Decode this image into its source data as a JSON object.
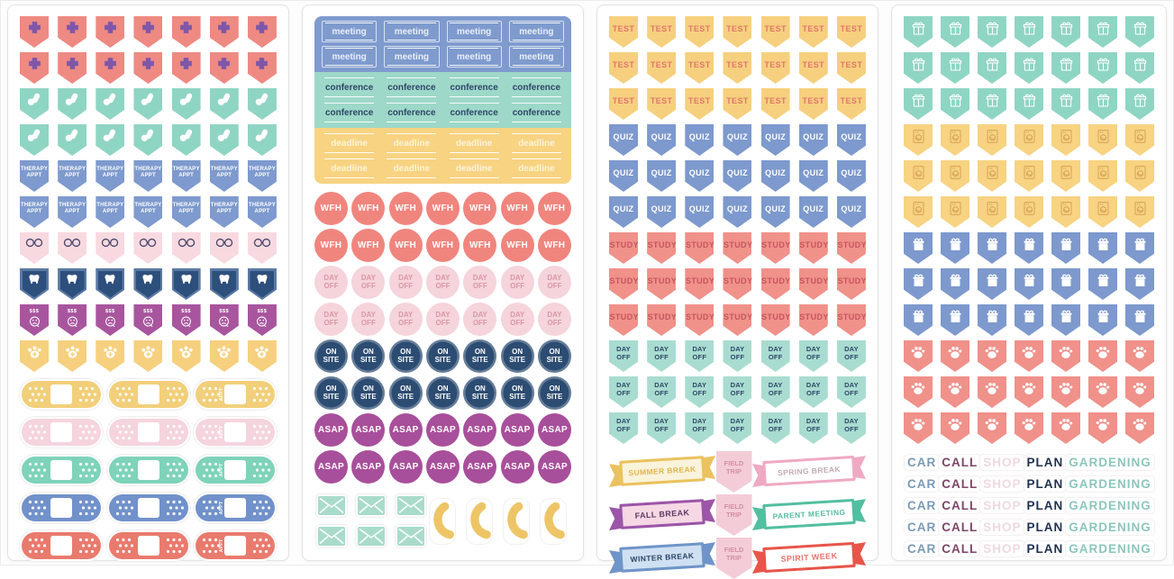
{
  "photo": {
    "description_colors": {
      "page_bg": "#fdfdfd",
      "sheet_bg": "#ffffff",
      "sheet_border": "#e3e3e3"
    }
  },
  "sheets": [
    {
      "name": "medical-sticker-sheet",
      "sections": [
        {
          "type": "pennants",
          "rows": 2,
          "cols": 7,
          "color": "#ee8a82",
          "icon": "medical-cross-icon",
          "iconColor": "#7e57a8"
        },
        {
          "type": "pennants",
          "rows": 2,
          "cols": 7,
          "color": "#8fd5c3",
          "icon": "pills-icon",
          "iconColor": "#ffffff"
        },
        {
          "type": "pennants",
          "rows": 2,
          "cols": 7,
          "color": "#7e9ace",
          "label": "THERAPY APPT",
          "textColor": "#ffffff"
        },
        {
          "type": "pennants",
          "rows": 1,
          "cols": 7,
          "color": "#f8d9e0",
          "icon": "glasses-icon",
          "iconColor": "#44436a"
        },
        {
          "type": "pennants",
          "rows": 1,
          "cols": 7,
          "color": "#2d4f7c",
          "icon": "tooth-icon",
          "iconColor": "#ffffff",
          "innerBorder": "#5b7aa5"
        },
        {
          "type": "pennants",
          "rows": 1,
          "cols": 7,
          "color": "#a8559e",
          "icon": "sad-money-face-icon",
          "iconColor": "#ffffff",
          "labelTop": "$$$"
        },
        {
          "type": "pennants",
          "rows": 1,
          "cols": 7,
          "color": "#f6d07e",
          "icon": "vet-paw-icon",
          "iconColor": "#ffffff"
        },
        {
          "type": "bandaids",
          "cols": 3,
          "colors": [
            "#f2cf7a",
            "#f5d4de",
            "#7ed3b9",
            "#7191cb",
            "#e97a6e"
          ],
          "sideLabel": "APPT"
        }
      ]
    },
    {
      "name": "work-sticker-sheet",
      "sections": [
        {
          "type": "labelBlocks",
          "rows": 2,
          "cols": 4,
          "blocks": [
            {
              "color": "#7f9bce",
              "label": "meeting",
              "textColor": "#e8eefa",
              "bordered": true
            },
            {
              "color": "#9ed8c8",
              "label": "conference",
              "textColor": "#2d4668",
              "bordered": false
            },
            {
              "color": "#f7d382",
              "label": "deadline",
              "textColor": "#fdf3d8",
              "bordered": false
            }
          ]
        },
        {
          "type": "circles",
          "rows": 2,
          "cols": 7,
          "color": "#f0857e",
          "label": "WFH",
          "textColor": "#ffffff",
          "size": "lg"
        },
        {
          "type": "circles",
          "rows": 2,
          "cols": 7,
          "color": "#f6d4db",
          "label": "DAY OFF",
          "textColor": "#db96a5",
          "size": "md"
        },
        {
          "type": "circles",
          "rows": 2,
          "cols": 7,
          "color": "#2c4c72",
          "label": "ON SITE",
          "textColor": "#ffffff",
          "size": "md",
          "ring": true
        },
        {
          "type": "circles",
          "rows": 2,
          "cols": 7,
          "color": "#a84f9b",
          "label": "ASAP",
          "textColor": "#ffffff",
          "size": "lg"
        },
        {
          "type": "mailPhone",
          "envelope": {
            "color": "#a9dbcb",
            "rows": 2,
            "cols": 3
          },
          "phone": {
            "color": "#eec566",
            "count": 4
          }
        }
      ]
    },
    {
      "name": "school-sticker-sheet",
      "sections": [
        {
          "type": "pennants",
          "rows": 3,
          "cols": 7,
          "color": "#f6d07e",
          "label": "TEST",
          "textColor": "#e2766b"
        },
        {
          "type": "pennants",
          "rows": 3,
          "cols": 7,
          "color": "#7d99cd",
          "label": "QUIZ",
          "textColor": "#ffffff"
        },
        {
          "type": "pennants",
          "rows": 3,
          "cols": 7,
          "color": "#f0918a",
          "label": "STUDY",
          "textColor": "#c6565e"
        },
        {
          "type": "pennants",
          "rows": 3,
          "cols": 7,
          "color": "#a9dcd0",
          "label": "DAY OFF",
          "textColor": "#2d4668"
        },
        {
          "type": "banners",
          "fieldTrip": {
            "text": "FIELD TRIP",
            "color": "#f3ccd8",
            "textColor": "#d4909f"
          },
          "rows": [
            {
              "left": {
                "outer": "#eac25e",
                "inner": "#faf3dc",
                "text": "SUMMER BREAK",
                "textColor": "#e0b54c"
              },
              "right": {
                "outer": "#efa9c3",
                "inner": "#ffffff",
                "text": "SPRING BREAK",
                "textColor": "#c2aab2"
              }
            },
            {
              "left": {
                "outer": "#9c55a8",
                "inner": "#f5d8e4",
                "text": "FALL BREAK",
                "textColor": "#5e3a66"
              },
              "right": {
                "outer": "#52bfa0",
                "inner": "#ffffff",
                "text": "PARENT MEETING",
                "textColor": "#57bda1"
              }
            },
            {
              "left": {
                "outer": "#6f94c9",
                "inner": "#cfe0f2",
                "text": "WINTER BREAK",
                "textColor": "#2d4668"
              },
              "right": {
                "outer": "#e8554a",
                "inner": "#ffffff",
                "text": "SPIRIT WEEK",
                "textColor": "#e8756b"
              }
            }
          ]
        }
      ]
    },
    {
      "name": "home-sticker-sheet",
      "sections": [
        {
          "type": "pennants",
          "rows": 3,
          "cols": 7,
          "color": "#8fd5c4",
          "icon": "gift-outline-icon",
          "iconColor": "#ffffff"
        },
        {
          "type": "pennants",
          "rows": 3,
          "cols": 7,
          "color": "#f7d382",
          "icon": "laundry-machine-icon",
          "iconColor": "#d9a558"
        },
        {
          "type": "pennants",
          "rows": 3,
          "cols": 7,
          "color": "#7d99cd",
          "icon": "gift-icon",
          "iconColor": "#ffffff"
        },
        {
          "type": "pennants",
          "rows": 3,
          "cols": 7,
          "color": "#f0918a",
          "icon": "paw-icon",
          "iconColor": "#ffffff"
        },
        {
          "type": "words",
          "rows": 5,
          "words": [
            {
              "text": "CAR",
              "color": "#7b9ab5"
            },
            {
              "text": "CALL",
              "color": "#7e4668"
            },
            {
              "text": "SHOP",
              "color": "#f0d9e0"
            },
            {
              "text": "PLAN",
              "color": "#1f3050"
            },
            {
              "text": "GARDENING",
              "color": "#8cc6bb"
            }
          ]
        }
      ]
    }
  ]
}
